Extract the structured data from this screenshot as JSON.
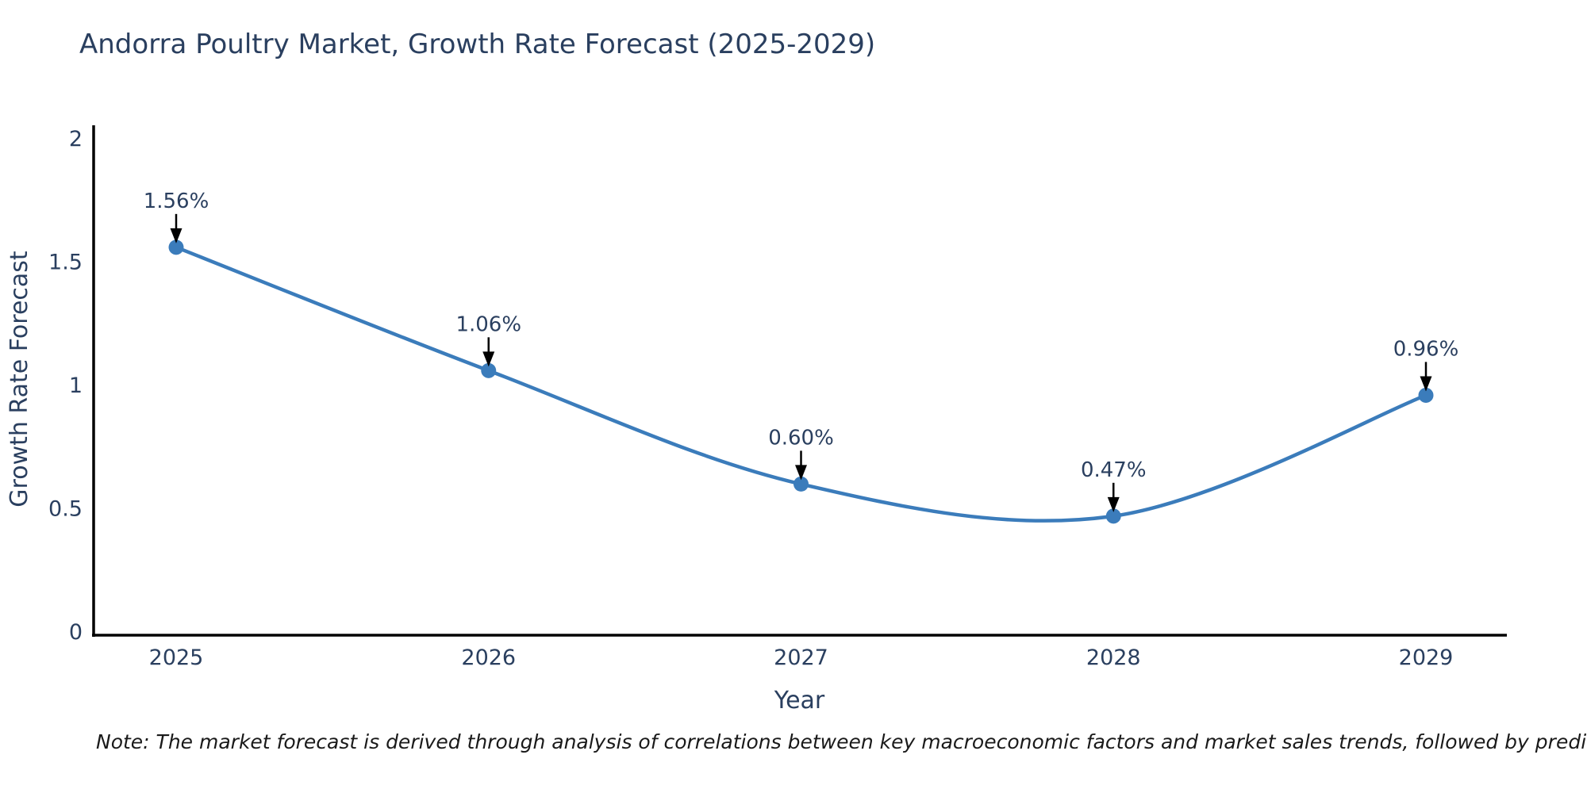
{
  "title": "Andorra Poultry Market, Growth Rate Forecast (2025-2029)",
  "note": "Note: The market forecast is derived through analysis of correlations between key macroeconomic factors and market sales trends, followed by predictive modeling to project future sales",
  "colors": {
    "line": "#3b7cbb",
    "marker": "#3b7cbb",
    "text": "#2a3f5f",
    "axis_line": "#000000",
    "arrow": "#000000",
    "note_text": "#1a1a1a",
    "background": "#ffffff"
  },
  "chart_data": {
    "type": "line",
    "title": "Andorra Poultry Market, Growth Rate Forecast (2025-2029)",
    "xlabel": "Year",
    "ylabel": "Growth Rate Forecast",
    "categories": [
      "2025",
      "2026",
      "2027",
      "2028",
      "2029"
    ],
    "values": [
      1.56,
      1.06,
      0.6,
      0.47,
      0.96
    ],
    "point_labels": [
      "1.56%",
      "1.06%",
      "0.60%",
      "0.47%",
      "0.96%"
    ],
    "y_ticks": [
      0,
      0.5,
      1,
      1.5,
      2
    ],
    "ylim": [
      0,
      2.05
    ],
    "line_shape": "spline",
    "grid": false,
    "legend": false,
    "annotations": "value labels with down arrows above each point"
  }
}
